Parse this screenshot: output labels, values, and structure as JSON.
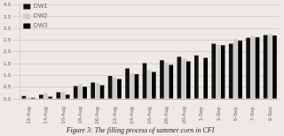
{
  "chart_data": {
    "type": "bar",
    "title": "Figure 3: The filling process of summer corn in CFI",
    "categories": [
      "12-Aug",
      "14-Aug",
      "16-Aug",
      "18-Aug",
      "20-Aug",
      "22-Aug",
      "24-Aug",
      "26-Aug",
      "28-Aug",
      "30-Aug",
      "1-Sep",
      "3-Sep",
      "5-Sep",
      "7-Sep",
      "9-Sep"
    ],
    "series": [
      {
        "name": "DW1",
        "color": "#111111",
        "values": [
          0.12,
          0.18,
          0.28,
          0.55,
          0.7,
          0.98,
          1.3,
          1.52,
          1.65,
          1.8,
          1.85,
          2.35,
          2.35,
          2.6,
          2.72
        ]
      },
      {
        "name": "DW2",
        "color": "#cccccc",
        "values": [
          0.08,
          0.25,
          0.3,
          0.62,
          0.68,
          0.92,
          1.1,
          1.22,
          1.55,
          1.72,
          0.05,
          2.3,
          2.55,
          2.68,
          2.76
        ]
      },
      {
        "name": "DW3",
        "color": "#000000",
        "values": [
          0.05,
          0.1,
          0.18,
          0.52,
          0.58,
          0.85,
          1.05,
          1.15,
          1.45,
          1.6,
          1.75,
          2.28,
          2.48,
          2.62,
          2.7
        ]
      }
    ],
    "ylim": [
      0,
      4.0
    ],
    "yticks": [
      {
        "value": 0,
        "label": "0.0"
      },
      0.5,
      {
        "value": 1.0,
        "label": "1.0"
      },
      1.5,
      {
        "value": 2.0,
        "label": "2.0"
      },
      2.5,
      {
        "value": 3.0,
        "label": "3.0"
      },
      3.5,
      {
        "value": 4.0,
        "label": "4.0"
      }
    ],
    "grid": true,
    "legend": "upper left"
  }
}
